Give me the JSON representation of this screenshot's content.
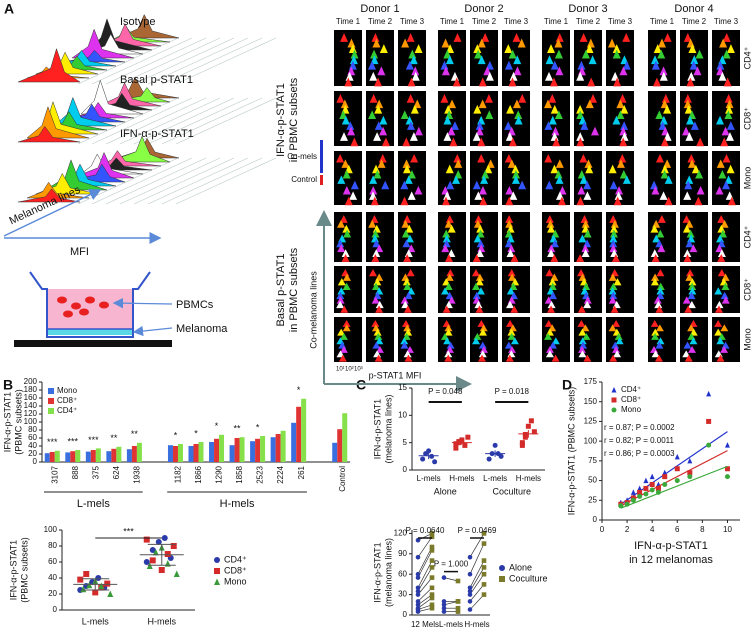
{
  "panel_labels": [
    "A",
    "B",
    "C",
    "D"
  ],
  "panel_a": {
    "layer_labels": [
      "Isotype",
      "Basal p-STAT1",
      "IFN-α-p-STAT1"
    ],
    "axis_labels": [
      "Melanoma lines",
      "MFI"
    ],
    "well_labels": [
      "PBMCs",
      "Melanoma"
    ],
    "donors": [
      "Donor 1",
      "Donor 2",
      "Donor 3",
      "Donor 4"
    ],
    "times": [
      "Time 1",
      "Time 2",
      "Time 3"
    ],
    "subsets": [
      "CD4⁺",
      "CD8⁺",
      "Mono"
    ],
    "group_labels": [
      [
        "IFN-α-p-STAT1",
        "in PBMC subsets"
      ],
      [
        "Basal p-STAT1",
        "in PBMC subsets"
      ]
    ],
    "legend": [
      "Co-mels",
      "Control"
    ],
    "x_axis_label": "p-STAT1 MFI",
    "y_axis_label": "Co-melanoma lines",
    "scale_labels": [
      "10¹",
      "10²",
      "10³"
    ]
  },
  "chart_data": [
    {
      "type": "bar",
      "y_label": [
        "IFN-α-p-STAT1",
        "(PBMC subsets)"
      ],
      "categories": [
        "3107",
        "888",
        "375",
        "624",
        "1938",
        null,
        "1182",
        "1866",
        "1290",
        "1858",
        "2523",
        "2224",
        "261",
        null,
        "Control"
      ],
      "group_labels": [
        "L-mels",
        "H-mels"
      ],
      "series": [
        {
          "name": "Mono",
          "color": "#3a6fe0",
          "values": [
            22,
            24,
            26,
            27,
            32,
            null,
            42,
            40,
            50,
            42,
            52,
            62,
            98,
            null,
            48
          ]
        },
        {
          "name": "CD8⁺",
          "color": "#e03434",
          "values": [
            25,
            27,
            30,
            33,
            40,
            null,
            40,
            45,
            58,
            60,
            58,
            70,
            138,
            null,
            82
          ]
        },
        {
          "name": "CD4⁺",
          "color": "#86e04a",
          "values": [
            28,
            30,
            34,
            38,
            48,
            null,
            45,
            50,
            68,
            62,
            65,
            78,
            158,
            null,
            122
          ]
        }
      ],
      "significance": [
        "***",
        "***",
        "***",
        "**",
        "**",
        null,
        "*",
        "*",
        "*",
        "**",
        "*",
        null,
        "*",
        null,
        null
      ],
      "ylim": [
        0,
        200
      ],
      "yticks": [
        0,
        20,
        40,
        60,
        80,
        100,
        120,
        140,
        160,
        180,
        200
      ]
    },
    {
      "type": "strip",
      "y_label": [
        "IFN-α-p-STAT1",
        "(PBMC subsets)"
      ],
      "categories": [
        "L-mels",
        "H-mels"
      ],
      "series": [
        {
          "name": "CD4⁺",
          "color": "#2a3aa8",
          "marker": "circle",
          "values": [
            [
              25,
              30,
              35,
              40,
              28
            ],
            [
              60,
              75,
              85,
              90,
              65
            ]
          ]
        },
        {
          "name": "CD8⁺",
          "color": "#d42a2a",
          "marker": "square",
          "values": [
            [
              22,
              28,
              33,
              38,
              45
            ],
            [
              50,
              70,
              80,
              88,
              62
            ]
          ]
        },
        {
          "name": "Mono",
          "color": "#3a9a3a",
          "marker": "triangle",
          "values": [
            [
              20,
              26,
              31,
              36,
              30
            ],
            [
              45,
              55,
              72,
              78,
              58
            ]
          ]
        }
      ],
      "summary": {
        "mean": [
          32,
          69
        ],
        "sd": [
          7,
          13
        ]
      },
      "annotation": "***",
      "ylim": [
        0,
        100
      ],
      "yticks": [
        0,
        20,
        40,
        60,
        80,
        100
      ]
    },
    {
      "type": "dot",
      "y_label": [
        "IFN-α-p-STAT1",
        "(melanoma lines)"
      ],
      "categories": [
        "L-mels",
        "H-mels",
        "L-mels",
        "H-mels"
      ],
      "group_labels": [
        "Alone",
        "Coculture"
      ],
      "colors": [
        "#2a3aa8",
        "#d42a2a",
        "#2a3aa8",
        "#d42a2a"
      ],
      "values": [
        [
          2,
          3,
          3.5,
          2.5,
          1.5
        ],
        [
          4,
          5,
          5.5,
          4.5,
          6,
          4.8,
          5.2
        ],
        [
          2,
          3,
          4.5,
          3,
          2.5
        ],
        [
          5,
          6.5,
          8,
          9,
          7,
          4.5,
          6
        ]
      ],
      "summary": {
        "mean": [
          2.6,
          5,
          3,
          6.6
        ],
        "sem": [
          0.6,
          0.3,
          0.6,
          0.7
        ]
      },
      "p_labels": [
        "P = 0.048",
        "P = 0.018"
      ],
      "ylim": [
        0,
        15
      ],
      "yticks": [
        0,
        5,
        10,
        15
      ]
    },
    {
      "type": "paired",
      "y_label": [
        "IFN-α-p-STAT1",
        "(melanoma lines)"
      ],
      "categories": [
        "12 Mels",
        "L-mels",
        "H-mels"
      ],
      "series": [
        {
          "name": "Alone",
          "color": "#2a3aa8",
          "marker": "circle",
          "values": [
            [
              5,
              8,
              10,
              15,
              20,
              30,
              35,
              40,
              55,
              60,
              85,
              110
            ],
            [
              5,
              10,
              15,
              20,
              55
            ],
            [
              8,
              20,
              30,
              35,
              40,
              60,
              85
            ]
          ]
        },
        {
          "name": "Coculture",
          "color": "#7a7a2a",
          "marker": "square",
          "values": [
            [
              10,
              15,
              25,
              30,
              40,
              55,
              70,
              80,
              95,
              100,
              115,
              120
            ],
            [
              5,
              10,
              20,
              20,
              50
            ],
            [
              30,
              45,
              60,
              70,
              80,
              105,
              120
            ]
          ]
        }
      ],
      "p_labels": [
        "P = 0.0640",
        "P = 1.000",
        "P = 0.0469"
      ],
      "ylim": [
        0,
        125
      ],
      "yticks": [
        0,
        30,
        60,
        90,
        120
      ]
    },
    {
      "type": "scatter",
      "x_label": [
        "IFN-α-p-STAT1",
        "in 12 melanomas"
      ],
      "y_label": [
        "IFN-α-p-STAT1 (PBMC subsets)"
      ],
      "x": [
        1.5,
        2,
        2.5,
        3,
        3.5,
        4,
        4.5,
        5,
        6,
        7,
        8.5,
        10
      ],
      "series": [
        {
          "name": "CD4⁺",
          "color": "#2233cc",
          "marker": "triangle",
          "values": [
            22,
            25,
            35,
            40,
            50,
            55,
            45,
            60,
            80,
            75,
            160,
            95
          ],
          "fit": {
            "x": [
              1.5,
              10
            ],
            "y": [
              20,
              112
            ]
          },
          "stat": "r = 0.87; P = 0.0002"
        },
        {
          "name": "CD8⁺",
          "color": "#d42a2a",
          "marker": "square",
          "values": [
            20,
            22,
            28,
            35,
            40,
            45,
            40,
            55,
            65,
            60,
            125,
            65
          ],
          "fit": {
            "x": [
              1.5,
              10
            ],
            "y": [
              18,
              88
            ]
          },
          "stat": "r = 0.82; P = 0.0011"
        },
        {
          "name": "Mono",
          "color": "#3aa83a",
          "marker": "circle",
          "values": [
            18,
            20,
            25,
            30,
            33,
            38,
            35,
            45,
            50,
            55,
            95,
            55
          ],
          "fit": {
            "x": [
              1.5,
              10
            ],
            "y": [
              15,
              68
            ]
          },
          "stat": "r = 0.86; P = 0.0003"
        }
      ],
      "xlim": [
        0,
        11
      ],
      "xticks": [
        0,
        2,
        4,
        6,
        8,
        10
      ],
      "ylim": [
        0,
        175
      ],
      "yticks": [
        0,
        25,
        50,
        75,
        100,
        125,
        150,
        175
      ]
    }
  ]
}
